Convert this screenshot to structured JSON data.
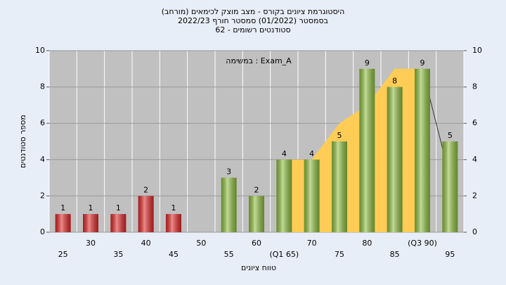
{
  "chart_data": {
    "type": "bar",
    "title": "היסטוגרמת ציונים בקורס - מצב מוצק לכימאים (מורחב)",
    "subtitle": "בסמסטר (01/2022) סמסטר חורף 2022/23",
    "subtitle2": "סטודנטים רשומים - 62",
    "annotation": "במשימה : Exam_A",
    "ylabel": "מספר סטודנטים",
    "xlabel": "טווח ציונים",
    "categories": [
      "25",
      "30",
      "35",
      "40",
      "45",
      "50",
      "55",
      "60",
      "(Q1 65)",
      "70",
      "75",
      "80",
      "85",
      "(Q3 90)",
      "95"
    ],
    "values": [
      1,
      1,
      1,
      2,
      1,
      null,
      3,
      2,
      4,
      4,
      5,
      9,
      8,
      9,
      5
    ],
    "bar_colors": [
      "#e02828",
      "#e02828",
      "#e02828",
      "#e02828",
      "#e02828",
      "#e02828",
      "#8fbf40",
      "#8fbf40",
      "#8fbf40",
      "#8fbf40",
      "#8fbf40",
      "#8fbf40",
      "#8fbf40",
      "#8fbf40",
      "#8fbf40"
    ],
    "area": {
      "color": "#ffcc55",
      "values": [
        null,
        null,
        null,
        null,
        null,
        null,
        null,
        null,
        4,
        4,
        6,
        7,
        9,
        9,
        null
      ]
    },
    "line": {
      "color": "#333333",
      "values": [
        null,
        null,
        null,
        null,
        null,
        null,
        null,
        null,
        null,
        null,
        null,
        null,
        null,
        9,
        3
      ]
    },
    "ylim": [
      0,
      10
    ],
    "yticks": [
      0,
      2,
      4,
      6,
      8,
      10
    ],
    "y2lim": [
      0,
      10
    ],
    "y2ticks": [
      0,
      2,
      4,
      6,
      8,
      10
    ],
    "grid": true
  }
}
